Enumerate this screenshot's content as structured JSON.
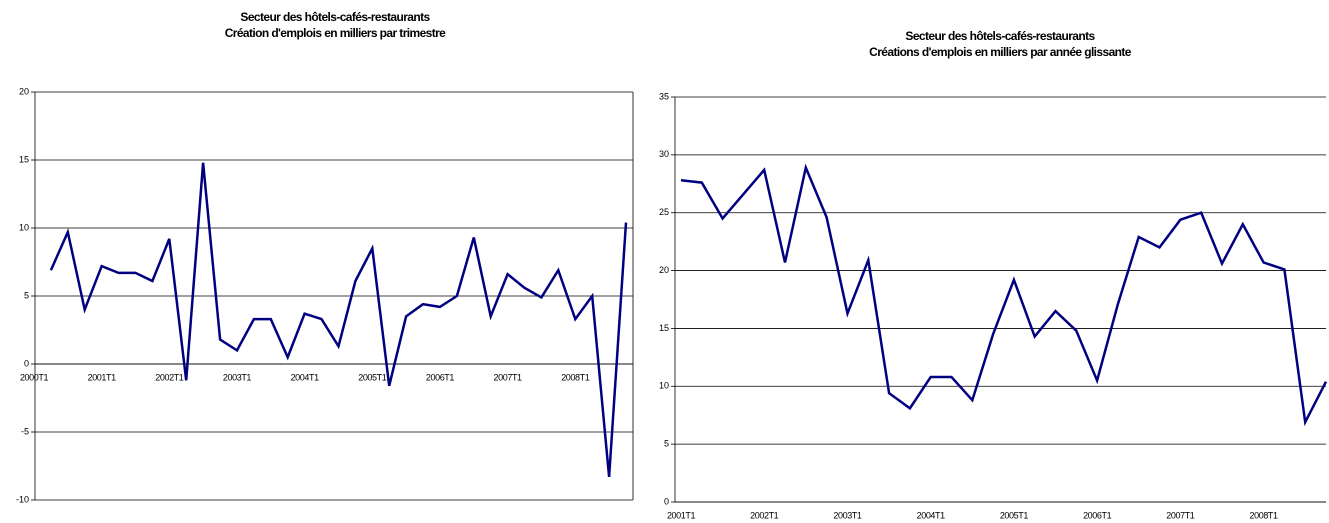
{
  "chart_data": [
    {
      "type": "line",
      "title": "Secteur des hôtels-cafés-restaurants",
      "subtitle": "Création d'emplois en milliers par trimestre",
      "categories": [
        "2000T1",
        null,
        null,
        null,
        "2001T1",
        null,
        null,
        null,
        "2002T1",
        null,
        null,
        null,
        "2003T1",
        null,
        null,
        null,
        "2004T1",
        null,
        null,
        null,
        "2005T1",
        null,
        null,
        null,
        "2006T1",
        null,
        null,
        null,
        "2007T1",
        null,
        null,
        null,
        "2008T1",
        null,
        null,
        null
      ],
      "series": [
        {
          "color": "#000080",
          "values": [
            null,
            6.9,
            9.7,
            4.0,
            7.2,
            6.7,
            6.7,
            6.1,
            9.2,
            -1.2,
            14.8,
            1.8,
            1.0,
            3.3,
            3.3,
            0.5,
            3.7,
            3.3,
            1.3,
            6.1,
            8.5,
            -1.6,
            3.5,
            4.4,
            4.2,
            5.0,
            9.3,
            3.5,
            6.6,
            5.6,
            4.9,
            6.9,
            3.3,
            5.0,
            -8.3,
            10.4
          ]
        }
      ],
      "ylim": [
        -10,
        20
      ],
      "yticks": [
        -10,
        -5,
        0,
        5,
        10,
        15,
        20
      ],
      "grid": true
    },
    {
      "type": "line",
      "title": "Secteur des hôtels-cafés-restaurants",
      "subtitle": "Créations d'emplois en milliers par année glissante",
      "categories": [
        "2001T1",
        null,
        null,
        null,
        "2002T1",
        null,
        null,
        null,
        "2003T1",
        null,
        null,
        null,
        "2004T1",
        null,
        null,
        null,
        "2005T1",
        null,
        null,
        null,
        "2006T1",
        null,
        null,
        null,
        "2007T1",
        null,
        null,
        null,
        "2008T1",
        null,
        null,
        null
      ],
      "series": [
        {
          "color": "#000080",
          "values": [
            27.8,
            27.6,
            24.5,
            26.6,
            28.7,
            20.7,
            28.9,
            24.6,
            16.3,
            20.9,
            9.4,
            8.1,
            10.8,
            10.8,
            8.8,
            14.5,
            19.2,
            14.3,
            16.5,
            14.8,
            10.5,
            17.1,
            22.9,
            22.0,
            24.4,
            25.0,
            20.6,
            24.0,
            20.7,
            20.1,
            6.9,
            10.4
          ]
        }
      ],
      "ylim": [
        0,
        35
      ],
      "yticks": [
        0,
        5,
        10,
        15,
        20,
        25,
        30,
        35
      ],
      "grid": true
    }
  ]
}
